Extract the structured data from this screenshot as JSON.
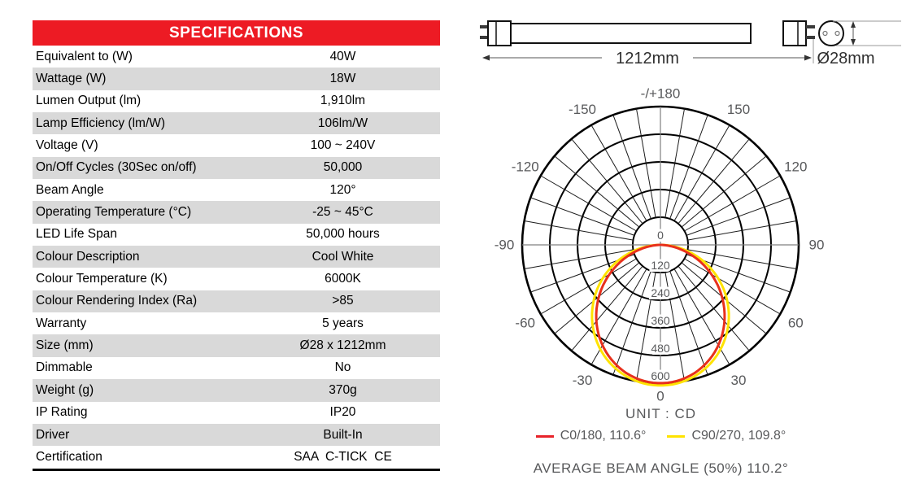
{
  "specifications_table": {
    "header": "SPECIFICATIONS",
    "header_bg": "#ed1b24",
    "row_alt_bg": "#d9d9d9",
    "rows": [
      {
        "label": "Equivalent to (W)",
        "value": "40W"
      },
      {
        "label": "Wattage (W)",
        "value": "18W"
      },
      {
        "label": "Lumen Output (lm)",
        "value": "1,910lm"
      },
      {
        "label": "Lamp Efficiency (lm/W)",
        "value": "106lm/W"
      },
      {
        "label": "Voltage (V)",
        "value": "100 ~ 240V"
      },
      {
        "label": "On/Off Cycles (30Sec on/off)",
        "value": "50,000"
      },
      {
        "label": "Beam Angle",
        "value": "120°"
      },
      {
        "label": "Operating Temperature (°C)",
        "value": "-25 ~ 45°C"
      },
      {
        "label": "LED Life Span",
        "value": "50,000 hours"
      },
      {
        "label": "Colour Description",
        "value": "Cool White"
      },
      {
        "label": "Colour Temperature (K)",
        "value": "6000K"
      },
      {
        "label": "Colour Rendering Index (Ra)",
        "value": ">85"
      },
      {
        "label": "Warranty",
        "value": "5 years"
      },
      {
        "label": "Size (mm)",
        "value": "Ø28 x 1212mm"
      },
      {
        "label": "Dimmable",
        "value": "No"
      },
      {
        "label": "Weight (g)",
        "value": "370g"
      },
      {
        "label": "IP Rating",
        "value": "IP20"
      },
      {
        "label": "Driver",
        "value": "Built-In"
      },
      {
        "label": "Certification",
        "value": "SAA  C-TICK  CE"
      }
    ]
  },
  "dimension_drawing": {
    "length_label": "1212mm",
    "diameter_label": "Ø28mm"
  },
  "chart_data": {
    "type": "polar",
    "unit_label": "UNIT : CD",
    "angle_grid_step_deg": 10,
    "angle_labels": [
      {
        "angle": 180,
        "text": "-/+180"
      },
      {
        "angle": -150,
        "text": "-150"
      },
      {
        "angle": 150,
        "text": "150"
      },
      {
        "angle": -120,
        "text": "-120"
      },
      {
        "angle": 120,
        "text": "120"
      },
      {
        "angle": -90,
        "text": "-90"
      },
      {
        "angle": 90,
        "text": "90"
      },
      {
        "angle": -60,
        "text": "-60"
      },
      {
        "angle": 60,
        "text": "60"
      },
      {
        "angle": -30,
        "text": "-30"
      },
      {
        "angle": 30,
        "text": "30"
      },
      {
        "angle": 0,
        "text": "0"
      }
    ],
    "radial_ticks": [
      0,
      120,
      240,
      360,
      480,
      600
    ],
    "r_max": 600,
    "series": [
      {
        "name": "C0/180",
        "beam_angle_50pct_deg": 110.6,
        "peak_cd": 600,
        "color": "#e8301c",
        "render_exponent": 1.23
      },
      {
        "name": "C90/270",
        "beam_angle_50pct_deg": 109.8,
        "peak_cd": 610,
        "color": "#ffe300",
        "render_exponent": 1.08
      }
    ],
    "legend": [
      {
        "label": "C0/180, 110.6°",
        "color": "#e8232a"
      },
      {
        "label": "C90/270, 109.8°",
        "color": "#ffe300"
      }
    ],
    "footer": "AVERAGE BEAM ANGLE (50%) 110.2°",
    "grid_color": "#000000",
    "axis_color": "#808080",
    "label_color": "#58595b"
  }
}
